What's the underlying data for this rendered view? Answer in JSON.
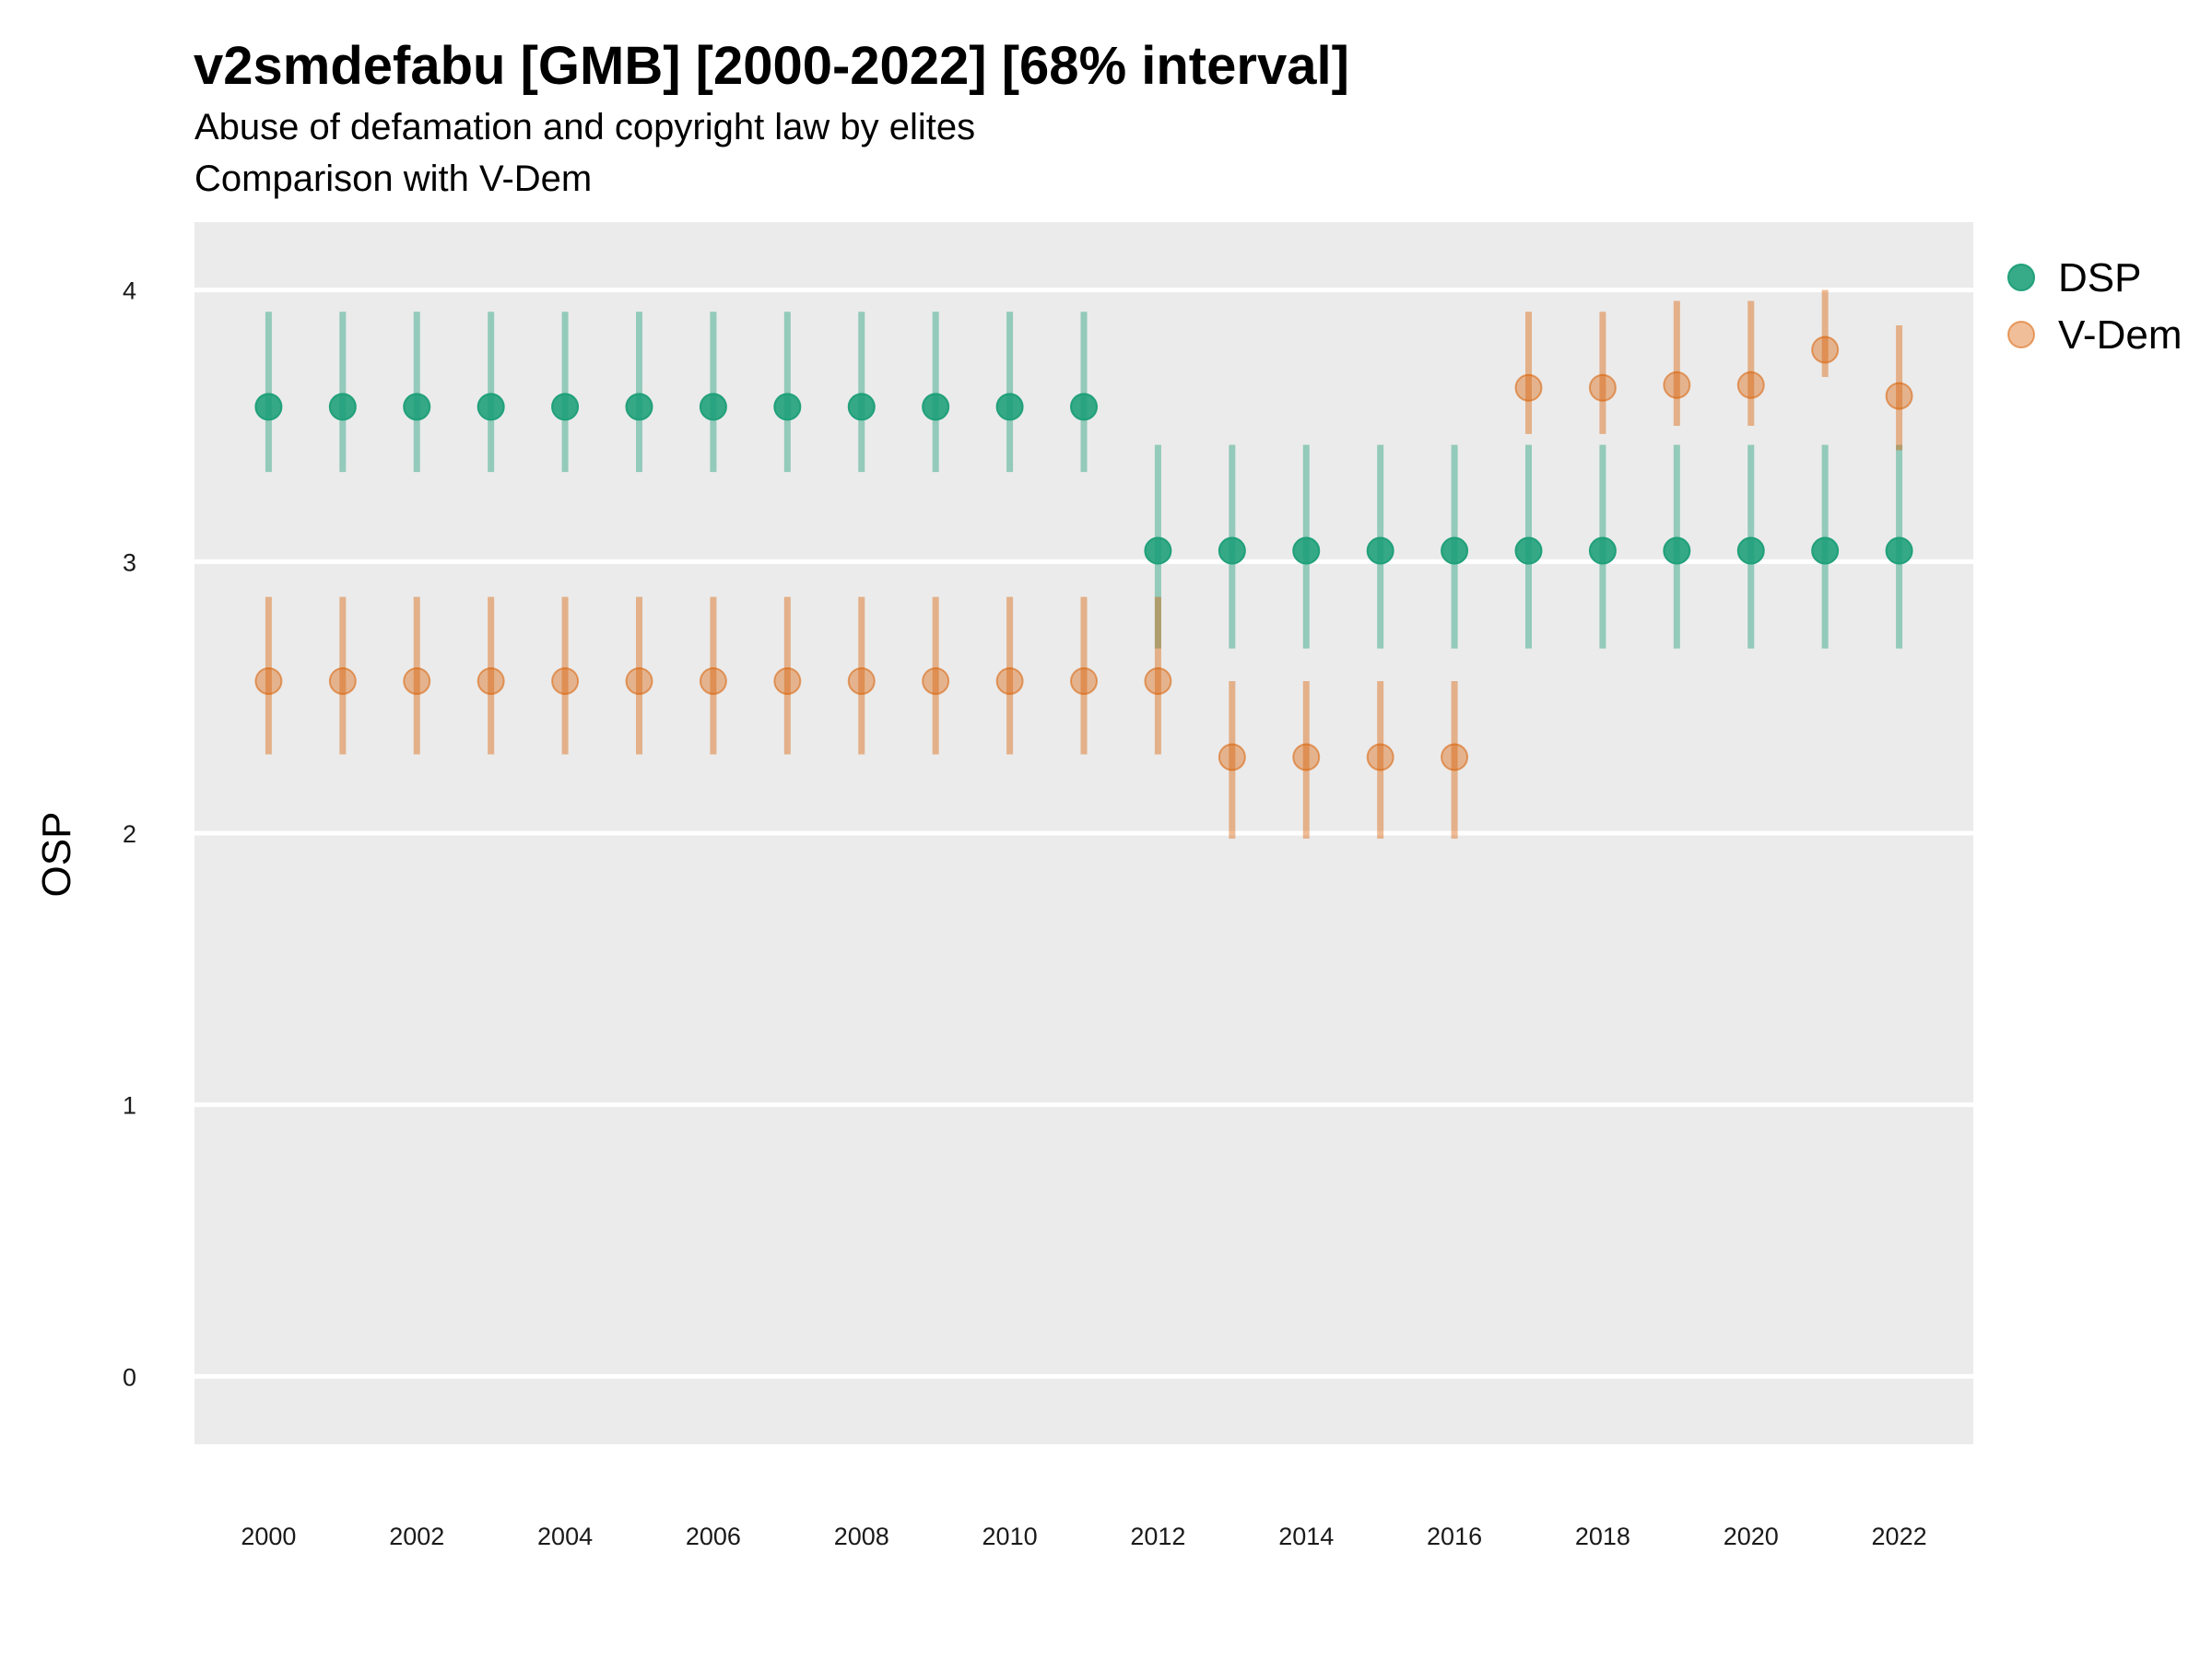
{
  "title": "v2smdefabu [GMB] [2000-2022] [68% interval]",
  "subtitle": "Abuse of defamation and copyright law by elites",
  "subtitle2": "Comparison with V-Dem",
  "chart_data": {
    "type": "scatter",
    "title": "v2smdefabu [GMB] [2000-2022] [68% interval]",
    "ylabel": "OSP",
    "xlabel": "",
    "ylim": [
      -0.25,
      4.25
    ],
    "xlim": [
      1999,
      2023
    ],
    "x_ticks": [
      2000,
      2002,
      2004,
      2006,
      2008,
      2010,
      2012,
      2014,
      2016,
      2018,
      2020,
      2022
    ],
    "y_ticks": [
      0,
      1,
      2,
      3,
      4
    ],
    "grid": true,
    "legend_position": "right",
    "x": [
      2000,
      2001,
      2002,
      2003,
      2004,
      2005,
      2006,
      2007,
      2008,
      2009,
      2010,
      2011,
      2012,
      2013,
      2014,
      2015,
      2016,
      2017,
      2018,
      2019,
      2020,
      2021,
      2022
    ],
    "series": [
      {
        "name": "DSP",
        "color": "#1b9e77",
        "values": [
          3.57,
          3.57,
          3.57,
          3.57,
          3.57,
          3.57,
          3.57,
          3.57,
          3.57,
          3.57,
          3.57,
          3.57,
          3.04,
          3.04,
          3.04,
          3.04,
          3.04,
          3.04,
          3.04,
          3.04,
          3.04,
          3.04,
          3.04
        ],
        "lower": [
          3.33,
          3.33,
          3.33,
          3.33,
          3.33,
          3.33,
          3.33,
          3.33,
          3.33,
          3.33,
          3.33,
          3.33,
          2.68,
          2.68,
          2.68,
          2.68,
          2.68,
          2.68,
          2.68,
          2.68,
          2.68,
          2.68,
          2.68
        ],
        "upper": [
          3.92,
          3.92,
          3.92,
          3.92,
          3.92,
          3.92,
          3.92,
          3.92,
          3.92,
          3.92,
          3.92,
          3.92,
          3.43,
          3.43,
          3.43,
          3.43,
          3.43,
          3.43,
          3.43,
          3.43,
          3.43,
          3.43,
          3.43
        ]
      },
      {
        "name": "V-Dem",
        "color": "#d95f02",
        "values": [
          2.56,
          2.56,
          2.56,
          2.56,
          2.56,
          2.56,
          2.56,
          2.56,
          2.56,
          2.56,
          2.56,
          2.56,
          2.56,
          2.28,
          2.28,
          2.28,
          2.28,
          3.64,
          3.64,
          3.65,
          3.65,
          3.78,
          3.61
        ],
        "lower": [
          2.29,
          2.29,
          2.29,
          2.29,
          2.29,
          2.29,
          2.29,
          2.29,
          2.29,
          2.29,
          2.29,
          2.29,
          2.29,
          1.98,
          1.98,
          1.98,
          1.98,
          3.47,
          3.47,
          3.5,
          3.5,
          3.68,
          3.41
        ],
        "upper": [
          2.87,
          2.87,
          2.87,
          2.87,
          2.87,
          2.87,
          2.87,
          2.87,
          2.87,
          2.87,
          2.87,
          2.87,
          2.87,
          2.56,
          2.56,
          2.56,
          2.56,
          3.92,
          3.92,
          3.96,
          3.96,
          4.0,
          3.87
        ]
      }
    ]
  }
}
